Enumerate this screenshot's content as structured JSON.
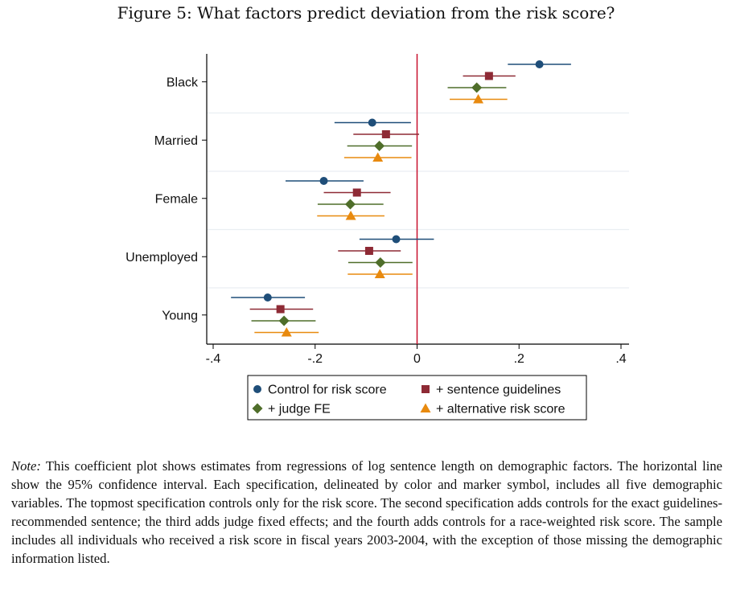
{
  "figure_title": "Figure 5: What factors predict deviation from the risk score?",
  "chart_data": {
    "type": "scatter",
    "subtype": "coefficient-plot",
    "title": "Figure 5: What factors predict deviation from the risk score?",
    "xlabel": "",
    "ylabel": "",
    "xlim": [
      -0.4,
      0.4
    ],
    "x_ticks": [
      -0.4,
      -0.2,
      0,
      0.2,
      0.4
    ],
    "x_tick_labels": [
      "-.4",
      "-.2",
      "0",
      ".2",
      ".4"
    ],
    "reference_line_x": 0,
    "categories": [
      "Black",
      "Married",
      "Female",
      "Unemployed",
      "Young"
    ],
    "series": [
      {
        "name": "Control for risk score",
        "marker": "circle",
        "color": "#1f4e79",
        "estimates": [
          0.24,
          -0.088,
          -0.183,
          -0.041,
          -0.293
        ],
        "ci_low": [
          0.178,
          -0.162,
          -0.258,
          -0.113,
          -0.365
        ],
        "ci_high": [
          0.302,
          -0.012,
          -0.105,
          0.033,
          -0.22
        ]
      },
      {
        "name": "+ sentence guidelines",
        "marker": "square",
        "color": "#8e2a35",
        "estimates": [
          0.141,
          -0.061,
          -0.118,
          -0.094,
          -0.268
        ],
        "ci_low": [
          0.09,
          -0.125,
          -0.183,
          -0.155,
          -0.328
        ],
        "ci_high": [
          0.193,
          0.004,
          -0.052,
          -0.032,
          -0.204
        ]
      },
      {
        "name": "+ judge FE",
        "marker": "diamond",
        "color": "#4f6e2a",
        "estimates": [
          0.117,
          -0.074,
          -0.131,
          -0.072,
          -0.261
        ],
        "ci_low": [
          0.06,
          -0.137,
          -0.195,
          -0.135,
          -0.325
        ],
        "ci_high": [
          0.175,
          -0.01,
          -0.066,
          -0.009,
          -0.199
        ]
      },
      {
        "name": "+ alternative risk score",
        "marker": "triangle",
        "color": "#e88a0f",
        "estimates": [
          0.12,
          -0.077,
          -0.13,
          -0.073,
          -0.256
        ],
        "ci_low": [
          0.064,
          -0.143,
          -0.196,
          -0.136,
          -0.319
        ],
        "ci_high": [
          0.177,
          -0.011,
          -0.064,
          -0.009,
          -0.193
        ]
      }
    ],
    "legend_position": "bottom",
    "grid": "horizontal separators between categories"
  },
  "note": {
    "label": "Note:",
    "text": "This coefficient plot shows estimates from regressions of log sentence length on demographic factors. The horizontal line show the 95% confidence interval. Each specification, delineated by color and marker symbol, includes all five demographic variables. The topmost specification controls only for the risk score. The second specification adds controls for the exact guidelines-recommended sentence; the third adds judge fixed effects; and the fourth adds controls for a race-weighted risk score. The sample includes all individuals who received a risk score in fiscal years 2003-2004, with the exception of those missing the demographic information listed."
  }
}
